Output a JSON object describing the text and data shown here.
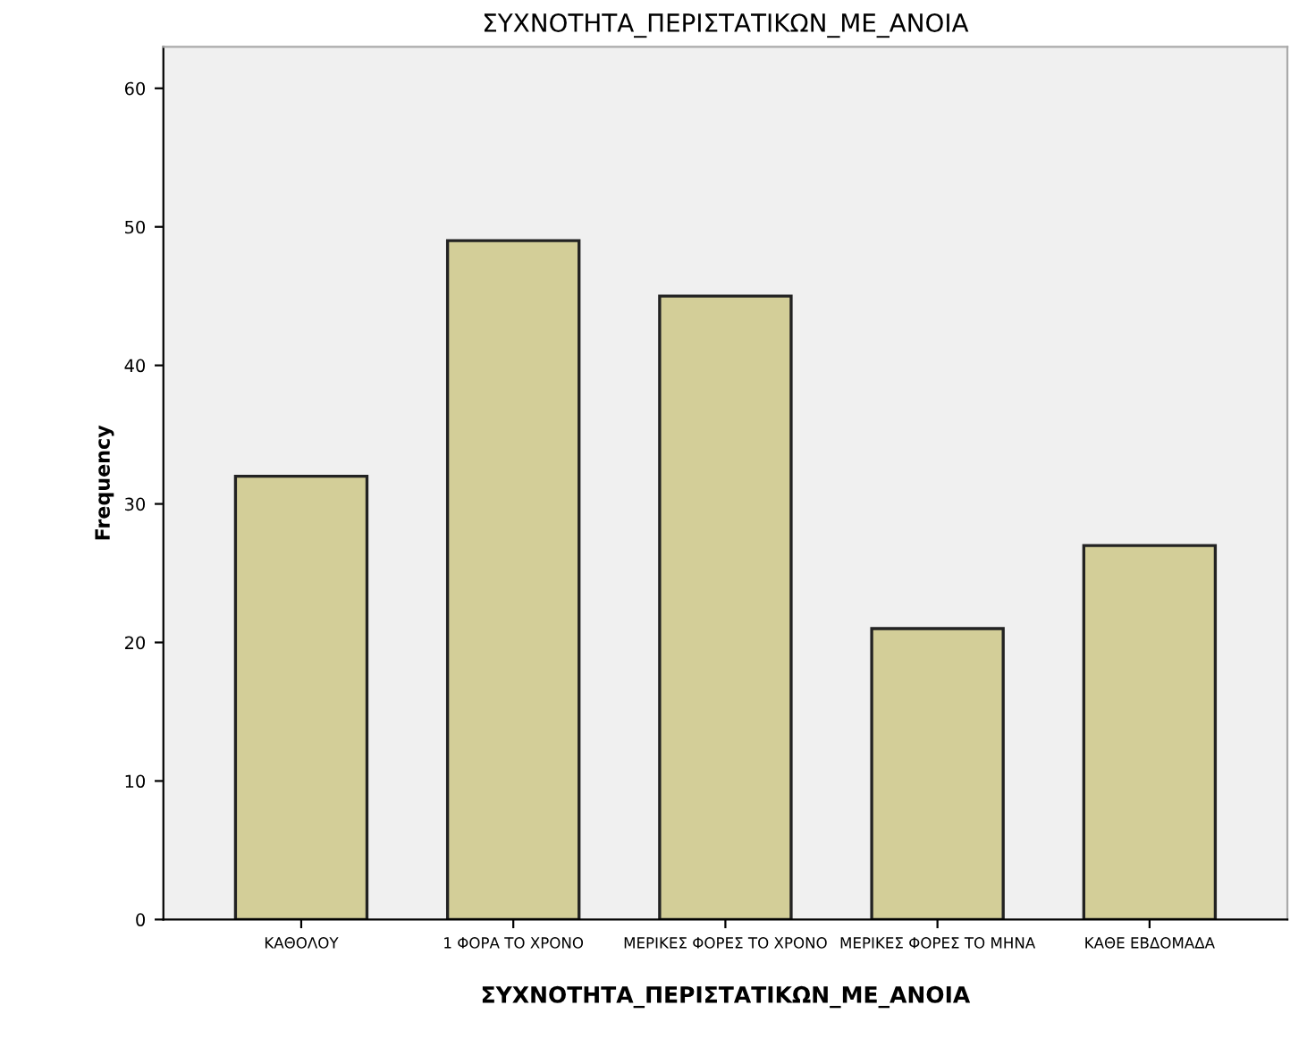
{
  "chart_data": {
    "type": "bar",
    "title": "ΣΥΧΝΟΤΗΤΑ_ΠΕΡΙΣΤΑΤΙΚΩΝ_ΜΕ_ΑΝΟΙΑ",
    "xlabel": "ΣΥΧΝΟΤΗΤΑ_ΠΕΡΙΣΤΑΤΙΚΩΝ_ΜΕ_ΑΝΟΙΑ",
    "ylabel": "Frequency",
    "categories": [
      "ΚΑΘΟΛΟΥ",
      "1 ΦΟΡΑ ΤΟ ΧΡΟΝΟ",
      "ΜΕΡΙΚΕΣ ΦΟΡΕΣ ΤΟ ΧΡΟΝΟ",
      "ΜΕΡΙΚΕΣ ΦΟΡΕΣ ΤΟ ΜΗΝΑ",
      "ΚΑΘΕ ΕΒΔΟΜΑΔΑ"
    ],
    "values": [
      32,
      49,
      45,
      21,
      27
    ],
    "color": "#d3ce98",
    "ylim": [
      0,
      63
    ],
    "yticks": [
      0,
      10,
      20,
      30,
      40,
      50,
      60
    ],
    "grid": false
  }
}
